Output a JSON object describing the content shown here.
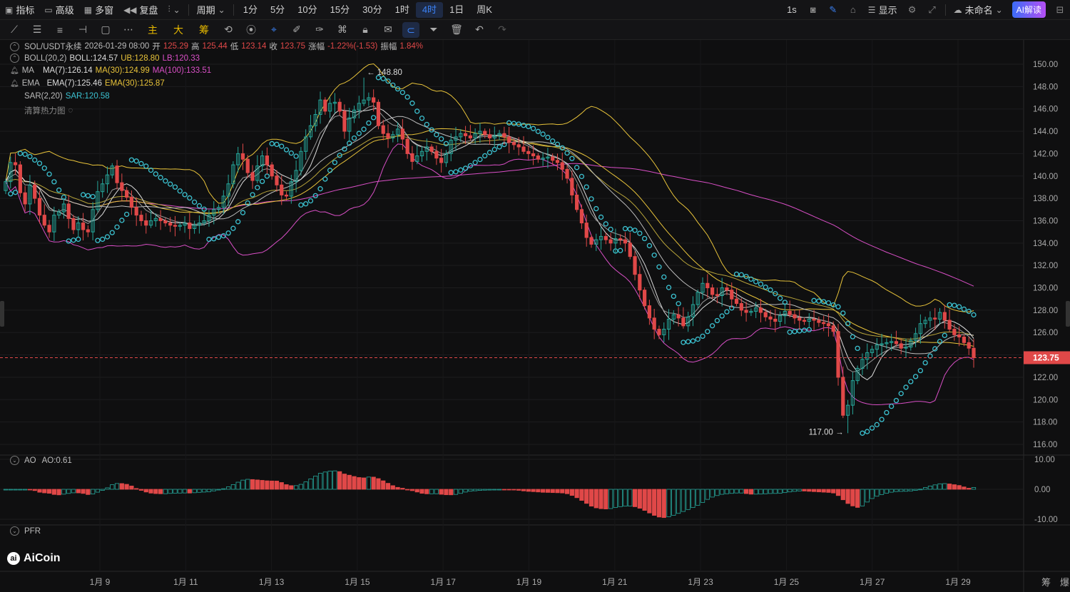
{
  "topbar": {
    "left_items": [
      {
        "icon": "indicator-icon",
        "label": "指标"
      },
      {
        "icon": "pro-icon",
        "label": "高级"
      },
      {
        "icon": "multi-window-icon",
        "label": "多窗"
      },
      {
        "icon": "replay-icon",
        "label": "复盘"
      }
    ],
    "chart_type_icon": "chart-type-icon",
    "period_label": "周期",
    "timeframes": [
      "1分",
      "5分",
      "10分",
      "15分",
      "30分",
      "1时",
      "4时",
      "1日",
      "周K"
    ],
    "active_timeframe": "4时",
    "refresh_label": "1s",
    "display_label": "显示",
    "layout_name": "未命名",
    "ai_button": "AI解读"
  },
  "drawbar": {
    "tools": [
      "line-tool-icon",
      "hline-tool-icon",
      "channel-tool-icon",
      "ray-tool-icon",
      "rect-tool-icon",
      "more-tools-icon"
    ],
    "text_tools": [
      "主",
      "大",
      "筹"
    ],
    "tools2": [
      "magic-icon",
      "measure-icon",
      "select-icon",
      "pencil-icon",
      "brush-icon",
      "pattern-icon",
      "lock-icon",
      "notes-icon",
      "magnet-icon",
      "filter-icon",
      "trash-icon",
      "undo-icon",
      "redo-icon"
    ],
    "active_tool": "magnet-icon"
  },
  "legend": {
    "symbol": "SOL/USDT永续",
    "datetime": "2026-01-29 08:00",
    "open_label": "开",
    "open": "125.29",
    "high_label": "高",
    "high": "125.44",
    "low_label": "低",
    "low": "123.14",
    "close_label": "收",
    "close": "123.75",
    "change_label": "涨幅",
    "change": "-1.22%(-1.53)",
    "amp_label": "振幅",
    "amp": "1.84%",
    "boll_name": "BOLL(20,2)",
    "boll": "BOLL:124.57",
    "boll_ub": "UB:128.80",
    "boll_lb": "LB:120.33",
    "ma_name": "MA",
    "ma7": "MA(7):126.14",
    "ma30": "MA(30):124.99",
    "ma100": "MA(100):133.51",
    "ema_name": "EMA",
    "ema7": "EMA(7):125.46",
    "ema30": "EMA(30):125.87",
    "sar_name": "SAR(2,20)",
    "sar": "SAR:120.58",
    "heatmap_label": "清算热力图",
    "ao_name": "AO",
    "ao": "AO:0.61",
    "pfr_name": "PFR"
  },
  "price_axis": {
    "ticks": [
      "150.00",
      "148.00",
      "146.00",
      "144.00",
      "142.00",
      "140.00",
      "138.00",
      "136.00",
      "134.00",
      "132.00",
      "130.00",
      "128.00",
      "126.00",
      "124.00",
      "122.00",
      "120.00",
      "118.00",
      "116.00"
    ],
    "tick_values": [
      150,
      148,
      146,
      144,
      142,
      140,
      138,
      136,
      134,
      132,
      130,
      128,
      126,
      124,
      122,
      120,
      118,
      116
    ],
    "current_price": "123.75",
    "current_value": 123.75
  },
  "ao_axis": {
    "ticks": [
      "10.00",
      "0.00",
      "-10.00"
    ],
    "tick_values": [
      10,
      0,
      -10
    ]
  },
  "annotations": {
    "high_label": "148.80",
    "high_value": 148.8,
    "low_label": "117.00",
    "low_value": 117.0
  },
  "time_axis": {
    "labels": [
      "1月 9",
      "1月 11",
      "1月 13",
      "1月 15",
      "1月 17",
      "1月 19",
      "1月 21",
      "1月 23",
      "1月 25",
      "1月 27",
      "1月 29"
    ]
  },
  "corner_labels": [
    "筹",
    "爆"
  ],
  "brand": "AiCoin",
  "colors": {
    "up": "#26a69a",
    "down": "#e04848",
    "ma_white": "#dddddd",
    "ma_yellow": "#e8c33a",
    "ma_pink": "#d94fc6",
    "sar": "#3cc2d1"
  },
  "chart_data": {
    "type": "candlestick",
    "ylim": [
      115.5,
      151
    ],
    "closes": [
      139.5,
      141.2,
      141.0,
      138.5,
      137.5,
      139.2,
      138.0,
      136.5,
      135.6,
      135.0,
      136.5,
      136.8,
      137.5,
      136.2,
      135.2,
      135.8,
      135.2,
      135.0,
      137.0,
      138.6,
      139.3,
      140.1,
      140.9,
      139.4,
      138.7,
      138.1,
      137.2,
      136.5,
      136.0,
      135.6,
      136.0,
      136.2,
      136.0,
      135.8,
      135.6,
      135.5,
      135.6,
      135.8,
      135.3,
      135.6,
      135.8,
      136.0,
      136.5,
      137.0,
      137.2,
      138.2,
      139.3,
      141.0,
      142.0,
      141.5,
      140.3,
      139.6,
      140.9,
      141.8,
      141.0,
      140.0,
      139.2,
      138.3,
      138.2,
      139.5,
      140.5,
      142.2,
      143.5,
      144.5,
      145.5,
      146.8,
      145.8,
      146.5,
      146.6,
      145.8,
      144.0,
      145.2,
      145.9,
      146.5,
      146.8,
      147.0,
      146.6,
      144.5,
      143.8,
      143.4,
      143.7,
      144.2,
      143.3,
      142.0,
      141.3,
      141.8,
      142.2,
      142.6,
      142.2,
      141.6,
      141.2,
      142.0,
      143.2,
      143.5,
      143.8,
      143.6,
      143.4,
      143.8,
      144.0,
      143.7,
      143.4,
      143.6,
      143.8,
      143.5,
      143.0,
      142.8,
      142.6,
      142.2,
      142.0,
      141.8,
      141.5,
      141.6,
      141.7,
      141.4,
      141.2,
      140.6,
      139.8,
      138.3,
      137.0,
      135.8,
      134.5,
      133.9,
      134.3,
      134.6,
      134.3,
      134.0,
      134.4,
      134.3,
      134.0,
      132.8,
      131.2,
      129.8,
      128.4,
      127.3,
      126.3,
      125.8,
      126.3,
      127.2,
      127.6,
      127.3,
      126.6,
      127.4,
      128.5,
      129.6,
      130.4,
      130.0,
      129.4,
      129.3,
      130.0,
      129.8,
      129.0,
      128.6,
      128.0,
      127.8,
      127.9,
      128.2,
      127.8,
      127.4,
      127.2,
      127.0,
      127.5,
      127.9,
      127.6,
      127.3,
      127.1,
      127.0,
      127.2,
      127.1,
      126.9,
      126.8,
      126.6,
      126.1,
      122.0,
      118.6,
      119.5,
      121.7,
      122.8,
      123.6,
      124.2,
      124.5,
      124.9,
      125.0,
      125.1,
      125.2,
      125.0,
      124.6,
      124.7,
      125.3,
      125.9,
      126.8,
      127.1,
      127.3,
      127.2,
      127.8,
      127.1,
      126.3,
      125.8,
      125.6,
      125.1,
      124.6,
      123.75
    ],
    "series": [
      {
        "name": "MA(7)",
        "color": "#dddddd"
      },
      {
        "name": "MA(30)",
        "color": "#e8c33a"
      },
      {
        "name": "MA(100)",
        "color": "#d94fc6"
      },
      {
        "name": "BOLL UB",
        "color": "#e8c33a"
      },
      {
        "name": "BOLL LB",
        "color": "#d94fc6"
      },
      {
        "name": "SAR",
        "color": "#3cc2d1"
      },
      {
        "name": "AO",
        "color": "#26a69a"
      }
    ],
    "indicator_values": {
      "boll": 124.57,
      "ub": 128.8,
      "lb": 120.33,
      "ma7": 126.14,
      "ma30": 124.99,
      "ma100": 133.51,
      "ema7": 125.46,
      "ema30": 125.87,
      "sar": 120.58,
      "ao": 0.61
    },
    "ao_ylim": [
      -14,
      14
    ]
  }
}
